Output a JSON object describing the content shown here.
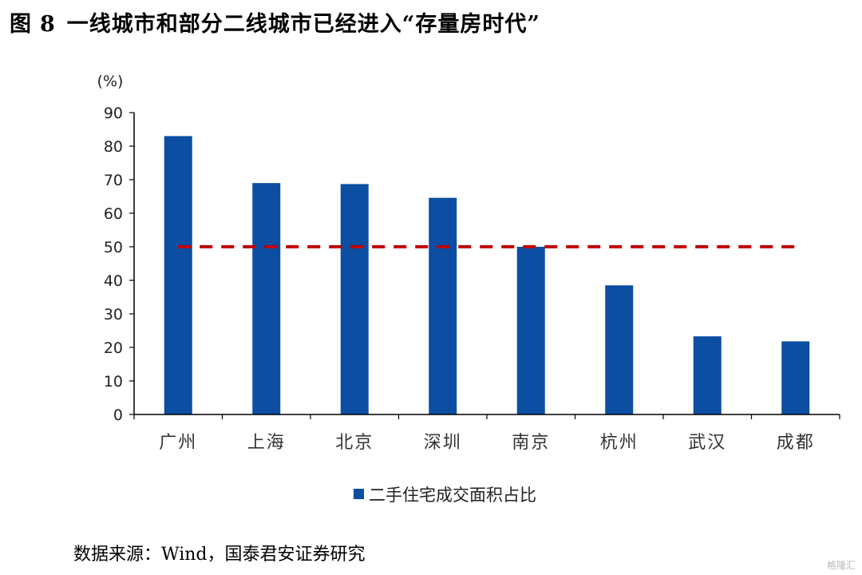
{
  "figure": {
    "label": "图",
    "number": "8",
    "title": "一线城市和部分二线城市已经进入“存量房时代”"
  },
  "chart_data": {
    "type": "bar",
    "categories": [
      "广州",
      "上海",
      "北京",
      "深圳",
      "南京",
      "杭州",
      "武汉",
      "成都"
    ],
    "series": [
      {
        "name": "二手住宅成交面积占比",
        "values": [
          83,
          69,
          68.7,
          64.6,
          50,
          38.5,
          23.3,
          21.8
        ]
      }
    ],
    "reference_line": {
      "value": 50,
      "style": "dashed",
      "color": "#C00000"
    },
    "ylabel": "(%)",
    "ylim": [
      0,
      90
    ],
    "yticks": [
      0,
      10,
      20,
      30,
      40,
      50,
      60,
      70,
      80,
      90
    ],
    "grid": false,
    "legend_position": "bottom-center",
    "bar_color": "#0B4EA2"
  },
  "source": "数据来源：Wind，国泰君安证券研究",
  "watermark": "格隆汇"
}
